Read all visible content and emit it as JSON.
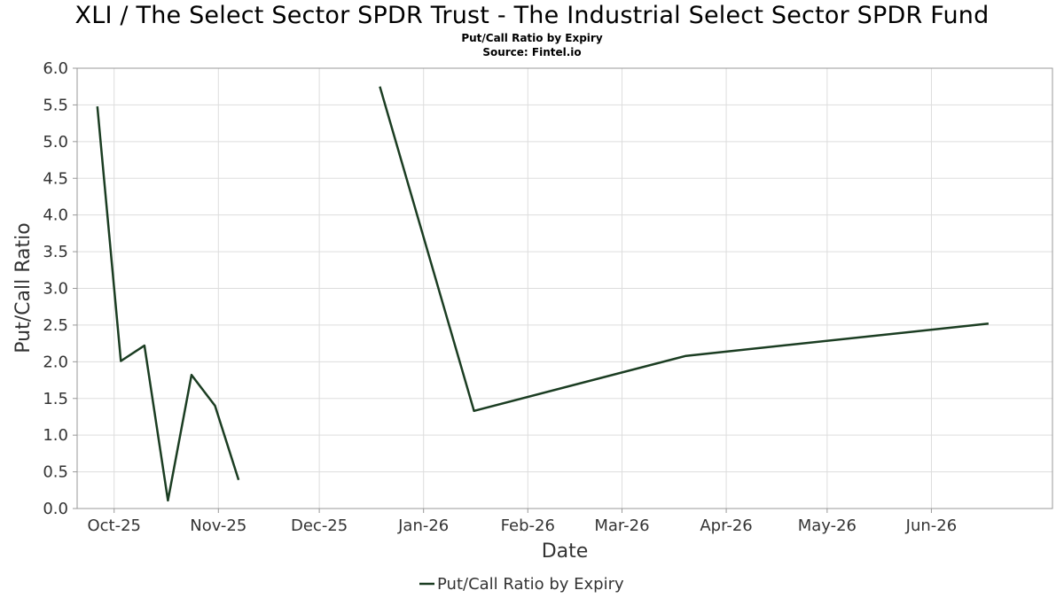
{
  "header": {
    "title": "XLI / The Select Sector SPDR Trust - The Industrial Select Sector SPDR Fund",
    "subtitle": "Put/Call Ratio by Expiry",
    "source": "Source: Fintel.io"
  },
  "colors": {
    "line": "#1b3d22",
    "grid": "#dddddd",
    "frame": "#999999"
  },
  "chart_data": {
    "type": "line",
    "title": "XLI / The Select Sector SPDR Trust - The Industrial Select Sector SPDR Fund",
    "subtitle": "Put/Call Ratio by Expiry",
    "xlabel": "Date",
    "ylabel": "Put/Call Ratio",
    "xlim": [
      "2025-09-20",
      "2026-07-07"
    ],
    "ylim": [
      0,
      6
    ],
    "grid": true,
    "legend_position": "bottom",
    "x_ticks": [
      {
        "date": "2025-10-01",
        "label": "Oct-25"
      },
      {
        "date": "2025-11-01",
        "label": "Nov-25"
      },
      {
        "date": "2025-12-01",
        "label": "Dec-25"
      },
      {
        "date": "2026-01-01",
        "label": "Jan-26"
      },
      {
        "date": "2026-02-01",
        "label": "Feb-26"
      },
      {
        "date": "2026-03-01",
        "label": "Mar-26"
      },
      {
        "date": "2026-04-01",
        "label": "Apr-26"
      },
      {
        "date": "2026-05-01",
        "label": "May-26"
      },
      {
        "date": "2026-06-01",
        "label": "Jun-26"
      }
    ],
    "y_ticks": [
      "0.0",
      "0.5",
      "1.0",
      "1.5",
      "2.0",
      "2.5",
      "3.0",
      "3.5",
      "4.0",
      "4.5",
      "5.0",
      "5.5",
      "6.0"
    ],
    "series": [
      {
        "name": "Put/Call Ratio by Expiry",
        "segments": [
          [
            {
              "x": "2025-09-26",
              "y": 5.48
            },
            {
              "x": "2025-10-03",
              "y": 2.01
            },
            {
              "x": "2025-10-10",
              "y": 2.22
            },
            {
              "x": "2025-10-17",
              "y": 0.11
            },
            {
              "x": "2025-10-24",
              "y": 1.82
            },
            {
              "x": "2025-10-31",
              "y": 1.4
            },
            {
              "x": "2025-11-07",
              "y": 0.39
            }
          ],
          [
            {
              "x": "2025-12-19",
              "y": 5.75
            },
            {
              "x": "2026-01-16",
              "y": 1.33
            },
            {
              "x": "2026-03-20",
              "y": 2.08
            },
            {
              "x": "2026-06-18",
              "y": 2.52
            }
          ]
        ]
      }
    ]
  }
}
